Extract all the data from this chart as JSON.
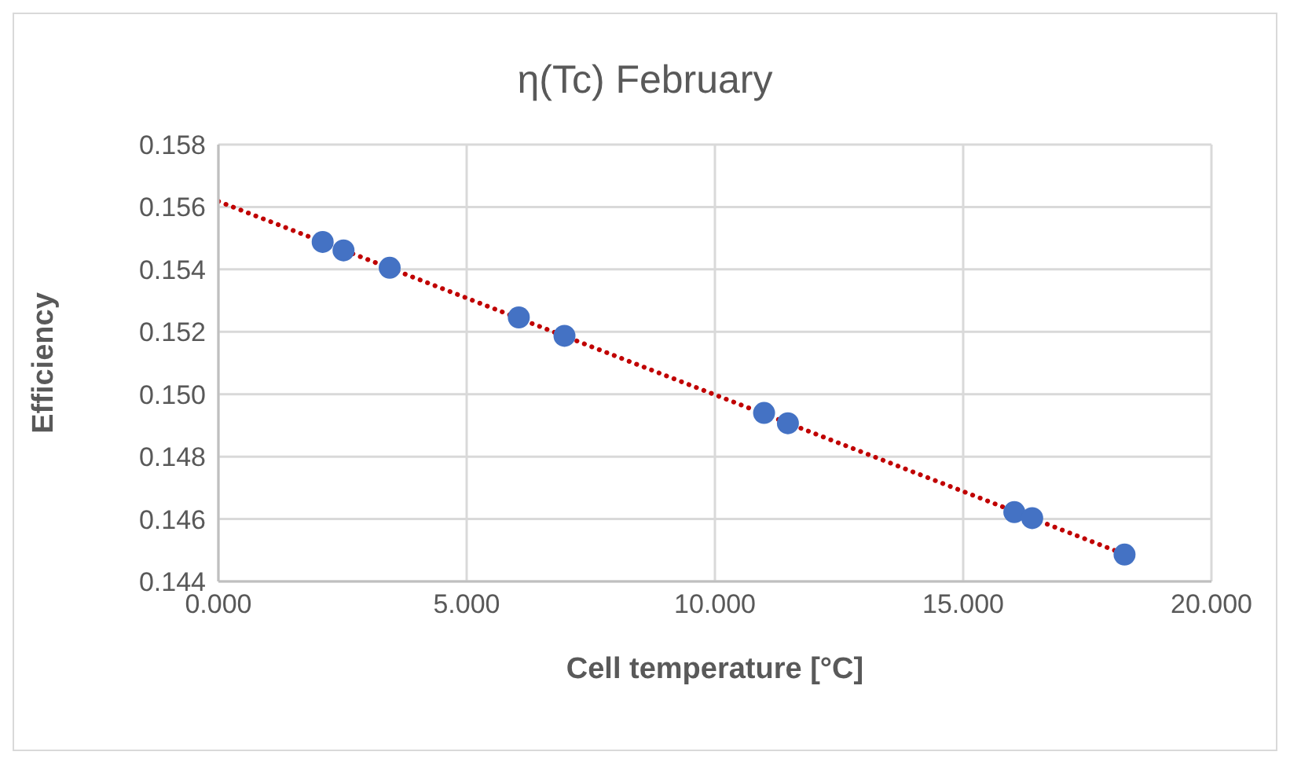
{
  "chart_data": {
    "type": "scatter",
    "title": "η(Tc) February",
    "xlabel": "Cell temperature [°C]",
    "ylabel": "Efficiency",
    "xlim": [
      0,
      20
    ],
    "xticks": [
      {
        "value": 0,
        "label": "0.000"
      },
      {
        "value": 5,
        "label": "5.000"
      },
      {
        "value": 10,
        "label": "10.000"
      },
      {
        "value": 15,
        "label": "15.000"
      },
      {
        "value": 20,
        "label": "20.000"
      }
    ],
    "ylim": [
      0.144,
      0.158
    ],
    "yticks": [
      0.144,
      0.146,
      0.148,
      {
        "value": 0.15,
        "label": "0.150"
      },
      0.152,
      0.154,
      0.156,
      0.158
    ],
    "grid": true,
    "legend": false,
    "series": [
      {
        "type": "scatter",
        "color": "#4472c4",
        "marker": "circle",
        "x": [
          2.1,
          2.52,
          3.45,
          6.05,
          6.97,
          10.99,
          11.47,
          16.03,
          16.39,
          18.25
        ],
        "values": [
          0.15488,
          0.15461,
          0.15405,
          0.15246,
          0.15187,
          0.1494,
          0.14907,
          0.14622,
          0.14603,
          0.14486
        ]
      },
      {
        "type": "line",
        "color": "#c00000",
        "marker": "none",
        "line_style": "dotted",
        "x": [
          0,
          18.25
        ],
        "values": [
          0.15618,
          0.14487
        ]
      }
    ]
  }
}
